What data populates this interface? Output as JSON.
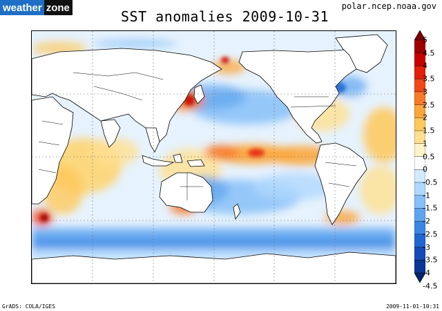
{
  "logo": {
    "part1": "weather",
    "part2": "zone"
  },
  "title": "SST anomalies 2009-10-31",
  "source": "polar.ncep.noaa.gov",
  "footer": {
    "left": "GrADS: COLA/IGES",
    "right": "2009-11-01-10:31"
  },
  "colorbar": {
    "labels": [
      "5",
      "4.5",
      "4",
      "3.5",
      "3",
      "2.5",
      "2",
      "1.5",
      "1",
      "0.5",
      "0",
      "-0.5",
      "-1",
      "-1.5",
      "-2",
      "-2.5",
      "-3",
      "-3.5",
      "-4",
      "-4.5"
    ],
    "colors": [
      "#7a0000",
      "#a00000",
      "#c80000",
      "#e41e0a",
      "#f04818",
      "#f87a28",
      "#fca63c",
      "#ffc85a",
      "#ffe090",
      "#fff2c8",
      "#ffffff",
      "#d2eaff",
      "#b0d8ff",
      "#86c0f8",
      "#5ea4f0",
      "#3a86e4",
      "#1f66d2",
      "#134cb8",
      "#0a3694",
      "#052470"
    ]
  },
  "map": {
    "projection": "equirectangular, Pacific-centered",
    "lon_range": [
      20,
      380
    ],
    "lat_range": [
      -90,
      90
    ],
    "ocean_color": "#d9ecfc",
    "land_color": "#ffffff",
    "coast_color": "#000000",
    "features": [
      "warm anomaly band central-eastern equatorial Pacific",
      "warm anomalies off Japan, Bering Sea, Mediterranean/Black Sea",
      "cold anomalies Southern Ocean",
      "warm patches western North Atlantic"
    ]
  }
}
